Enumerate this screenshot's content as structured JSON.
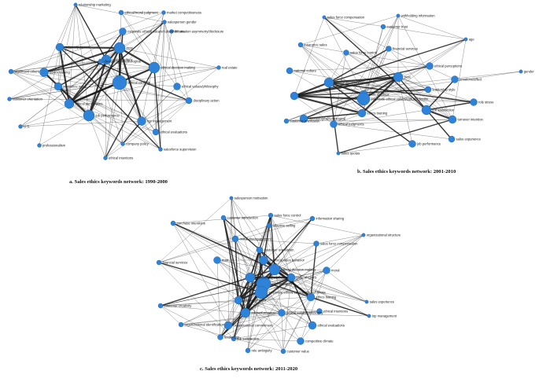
{
  "figure": {
    "panels": [
      {
        "id": "a",
        "caption": "a. Sales ethics keywords network: 1990-2000",
        "labels": [
          "relationship marketing",
          "ethical/moral judgment",
          "market competitiveness",
          "salesperson gender",
          "corporate ethical values/culture/climate",
          "information asymmetry/disclosure",
          "sales experience",
          "trust",
          "ethical decision making",
          "code of ethics",
          "real estate",
          "deontological/teleological",
          "ethics training",
          "significant others",
          "insurance sales",
          "ethical conflicts",
          "ethical values/philosophy",
          "customer orientation",
          "ethical perceptions",
          "job performance",
          "disciplinary action",
          "U.S.",
          "professionalism",
          "top management",
          "ethical evaluations",
          "company policy",
          "salesforce supervision",
          "ethical intentions"
        ]
      },
      {
        "id": "b",
        "caption": "b. Sales ethics keywords network: 2001-2010",
        "labels": [
          "sales force compensation",
          "withholding information",
          "customer trust",
          "insurance sales",
          "financial services",
          "sales force control",
          "age",
          "ethical perceptions",
          "national culture",
          "ethical decision making",
          "trust",
          "emotions/affect",
          "gender",
          "U.S.",
          "code of ethics",
          "leadership style",
          "role stress",
          "corporate ethical values/culture/climate",
          "job satisfaction",
          "deontological/teleological",
          "ethics training",
          "turnover intention",
          "customer orientation",
          "ethical judgments",
          "sales experience",
          "job performance",
          "sales quotas"
        ]
      },
      {
        "id": "c",
        "caption": "c. Sales ethics keywords network: 2011-2020",
        "labels": [
          "salesperson motivation",
          "customer satisfaction",
          "sales force control",
          "information sharing",
          "purchase intentions",
          "adaptive selling",
          "moral disengagement",
          "organizational structure",
          "customer orientation",
          "unethical sales behavior",
          "ethical decision making",
          "sales force compensation",
          "trust",
          "financial services",
          "relationship marketing",
          "moral",
          "code of ethics",
          "role ambiguity",
          "corporate ethical values/culture/climate",
          "sales experience",
          "job performance",
          "top management",
          "ethical behavior",
          "ethics training",
          "ethical intentions",
          "organizational commitment",
          "customer creativity",
          "organizational identification",
          "ethical evaluations",
          "ethical values/philosophy",
          "leadership",
          "job satisfaction",
          "role ambiguity",
          "competitive climate",
          "customer value"
        ]
      }
    ]
  }
}
